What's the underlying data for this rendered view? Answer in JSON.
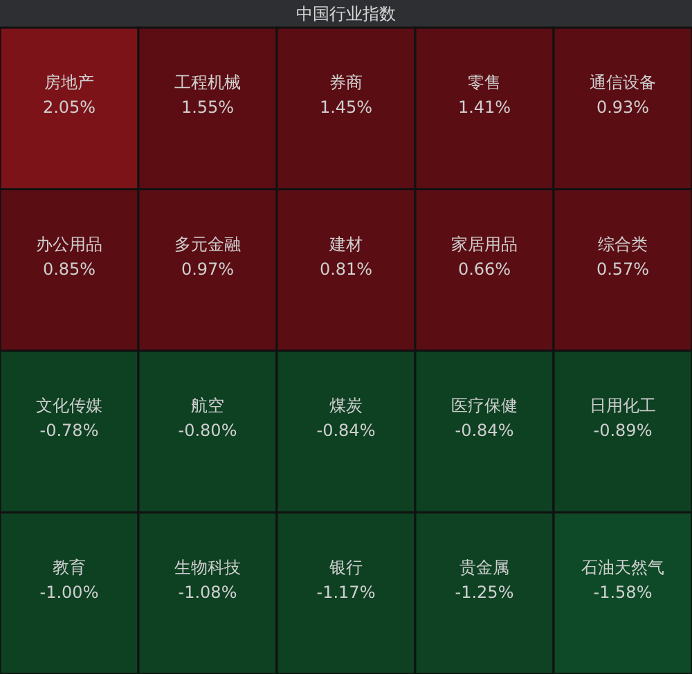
{
  "chart_data": {
    "type": "other",
    "title": "中国行业指数",
    "categories": [
      "房地产",
      "工程机械",
      "券商",
      "零售",
      "通信设备",
      "办公用品",
      "多元金融",
      "建材",
      "家居用品",
      "综合类",
      "文化传媒",
      "航空",
      "煤炭",
      "医疗保健",
      "日用化工",
      "教育",
      "生物科技",
      "银行",
      "贵金属",
      "石油天然气"
    ],
    "values": [
      2.05,
      1.55,
      1.45,
      1.41,
      0.93,
      0.85,
      0.97,
      0.81,
      0.66,
      0.57,
      -0.78,
      -0.8,
      -0.84,
      -0.84,
      -0.89,
      -1.0,
      -1.08,
      -1.17,
      -1.25,
      -1.58
    ],
    "value_labels": [
      "2.05%",
      "1.55%",
      "1.45%",
      "1.41%",
      "0.93%",
      "0.85%",
      "0.97%",
      "0.81%",
      "0.66%",
      "0.57%",
      "-0.78%",
      "-0.80%",
      "-0.84%",
      "-0.84%",
      "-0.89%",
      "-1.00%",
      "-1.08%",
      "-1.17%",
      "-1.25%",
      "-1.58%"
    ]
  }
}
